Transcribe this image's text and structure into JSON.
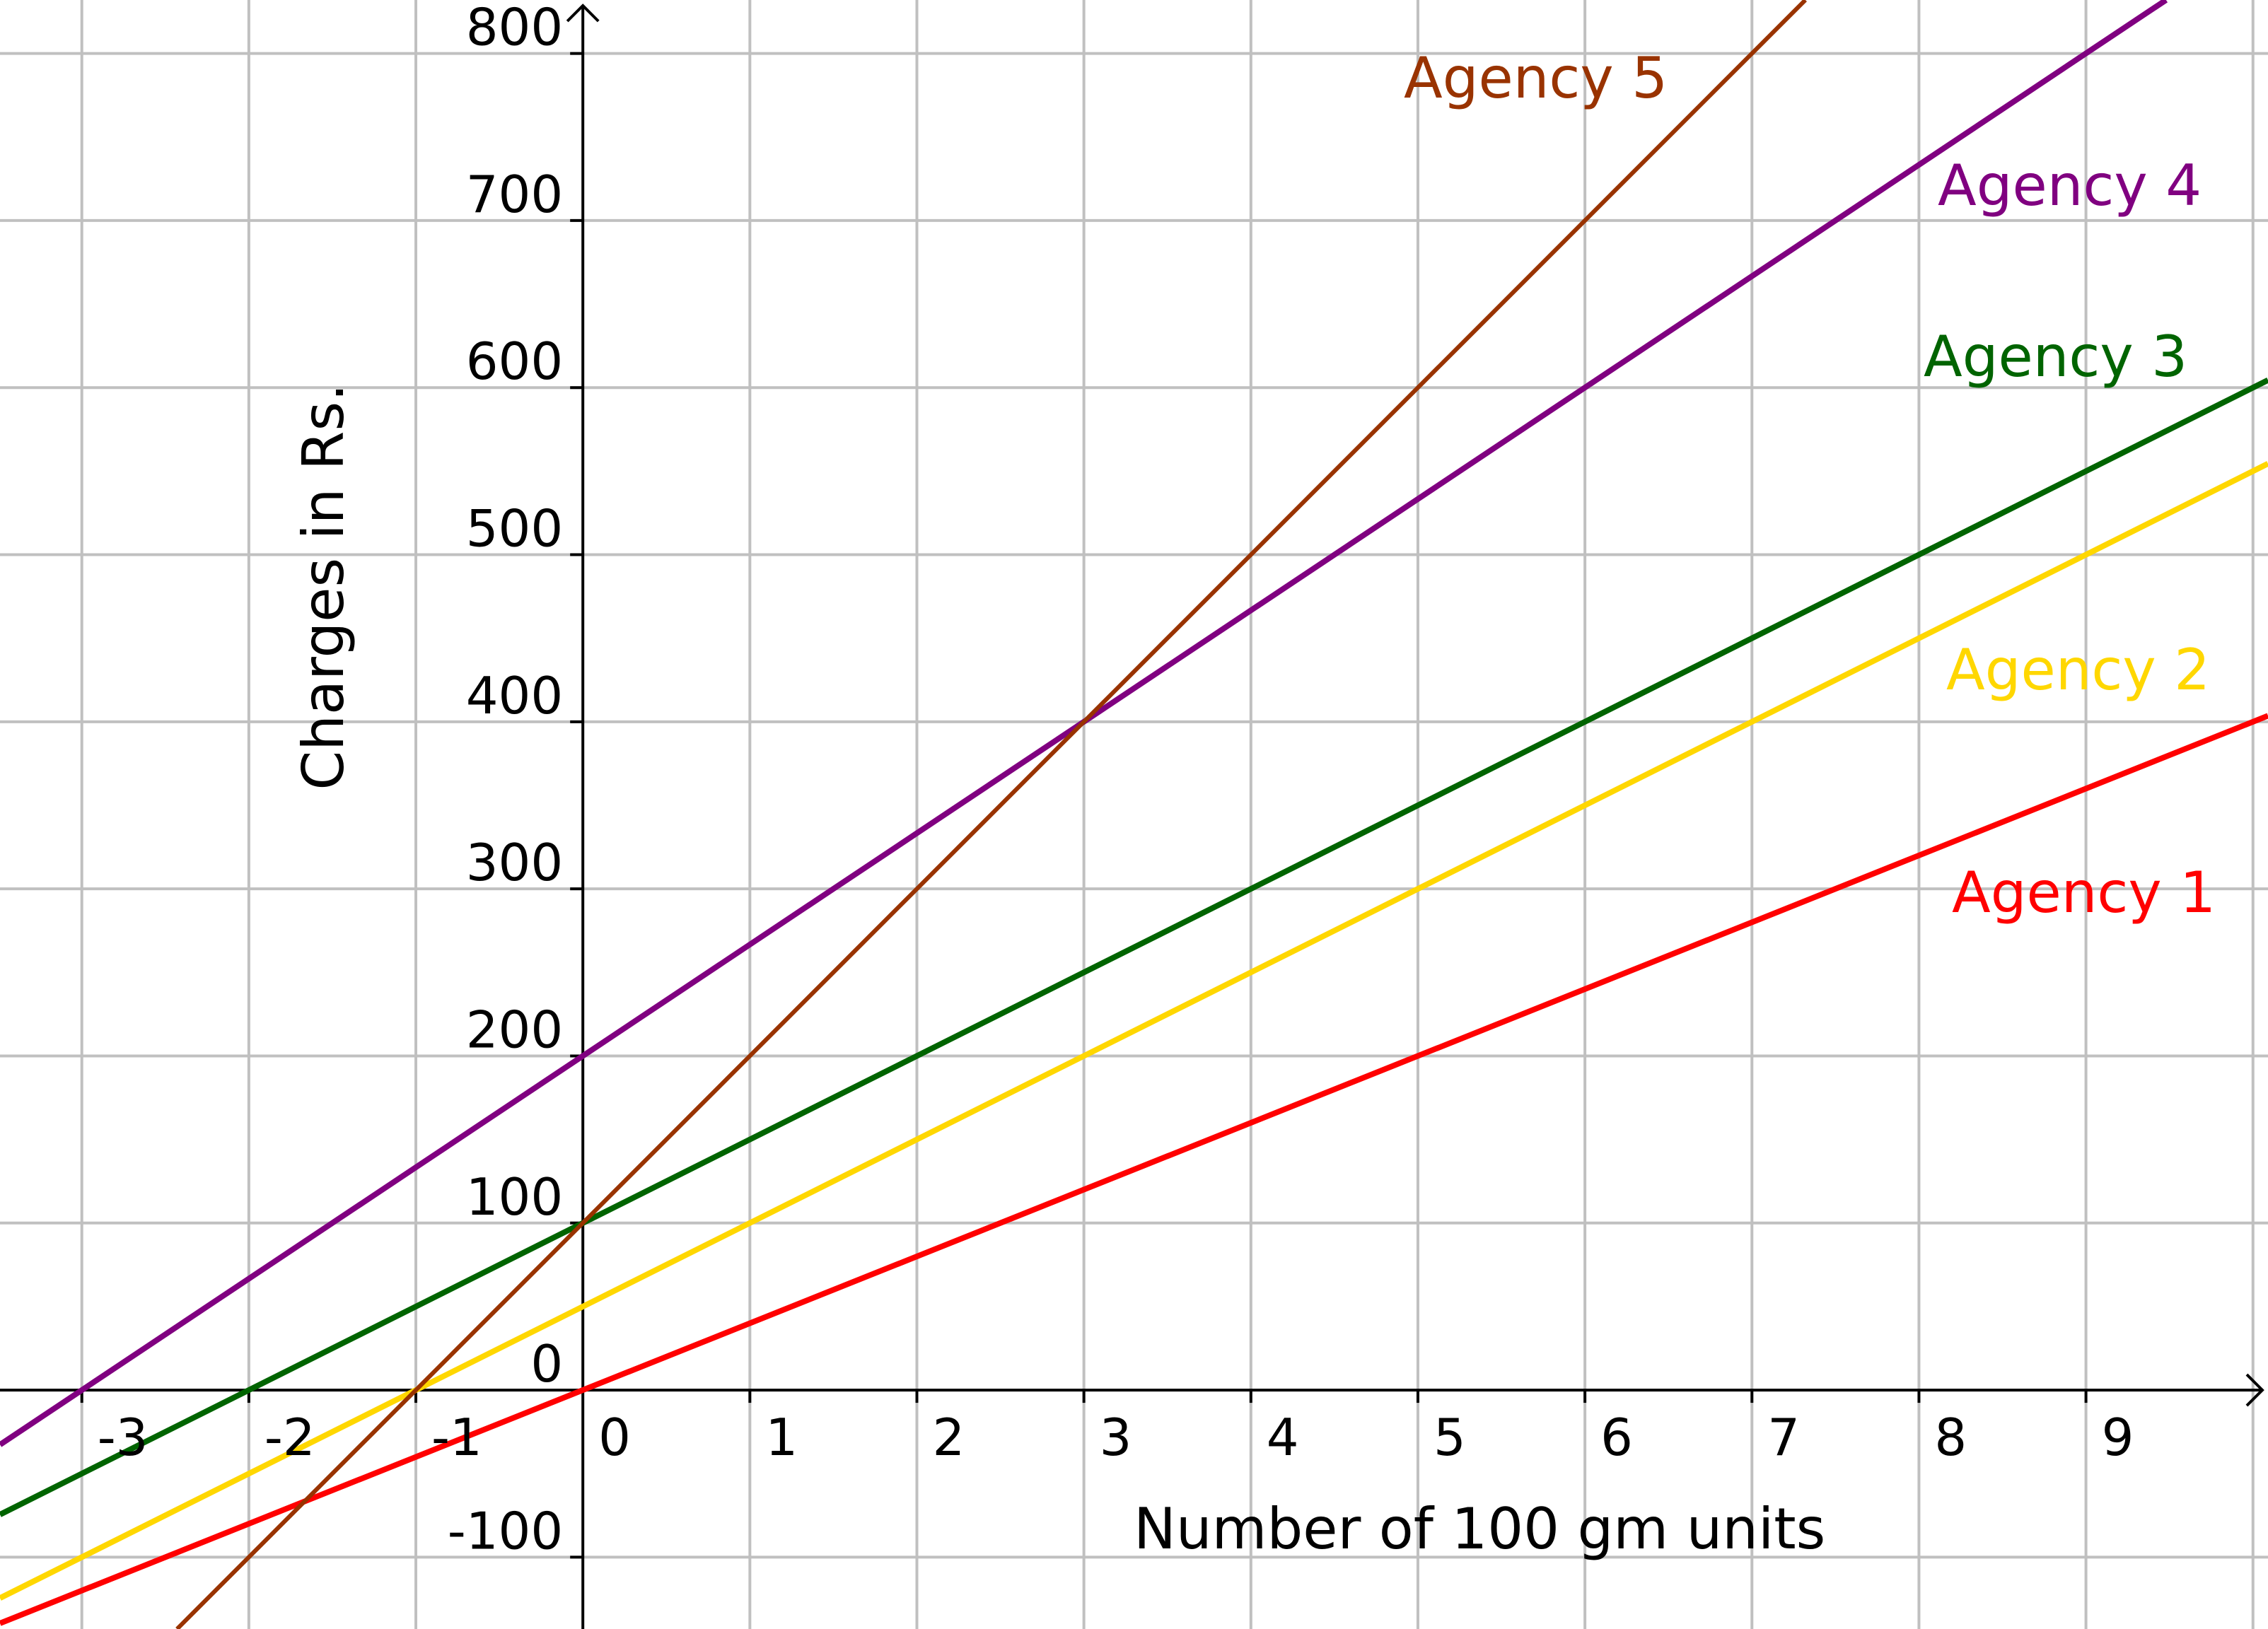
{
  "chart_data": {
    "type": "line",
    "title": "",
    "xlabel": "Number of 100 gm units",
    "ylabel": "Charges in Rs.",
    "xlim": [
      -3.49,
      10.09
    ],
    "ylim": [
      -143,
      832
    ],
    "grid": true,
    "x_ticks": [
      -3,
      -2,
      -1,
      0,
      1,
      2,
      3,
      4,
      5,
      6,
      7,
      8,
      9
    ],
    "x_tick_labels": [
      "-3",
      "-2",
      "-1",
      "0",
      "1",
      "2",
      "3",
      "4",
      "5",
      "6",
      "7",
      "8",
      "9"
    ],
    "y_ticks": [
      -100,
      0,
      100,
      200,
      300,
      400,
      500,
      600,
      700,
      800
    ],
    "y_tick_labels": [
      "-100",
      "0",
      "100",
      "200",
      "300",
      "400",
      "500",
      "600",
      "700",
      "800"
    ],
    "legend": "inline labels at right",
    "series": [
      {
        "name": "Agency 1",
        "color": "#ff0000",
        "slope": 40,
        "intercept": 0,
        "x": [
          -3.49,
          10.09
        ],
        "y": [
          -139.6,
          403.6
        ]
      },
      {
        "name": "Agency 2",
        "color": "#ffd700",
        "slope": 50,
        "intercept": 50,
        "x": [
          -3.49,
          10.09
        ],
        "y": [
          -124.5,
          554.5
        ]
      },
      {
        "name": "Agency 3",
        "color": "#006400",
        "slope": 50,
        "intercept": 100,
        "x": [
          -3.49,
          10.09
        ],
        "y": [
          -74.5,
          604.5
        ]
      },
      {
        "name": "Agency 4",
        "color": "#800080",
        "slope": 66.67,
        "intercept": 200,
        "x": [
          -3.49,
          10.09
        ],
        "y": [
          -32.7,
          872.7
        ]
      },
      {
        "name": "Agency 5",
        "color": "#993300",
        "slope": 100,
        "intercept": 100,
        "x": [
          -3.49,
          10.09
        ],
        "y": [
          -249,
          1109
        ]
      }
    ]
  }
}
